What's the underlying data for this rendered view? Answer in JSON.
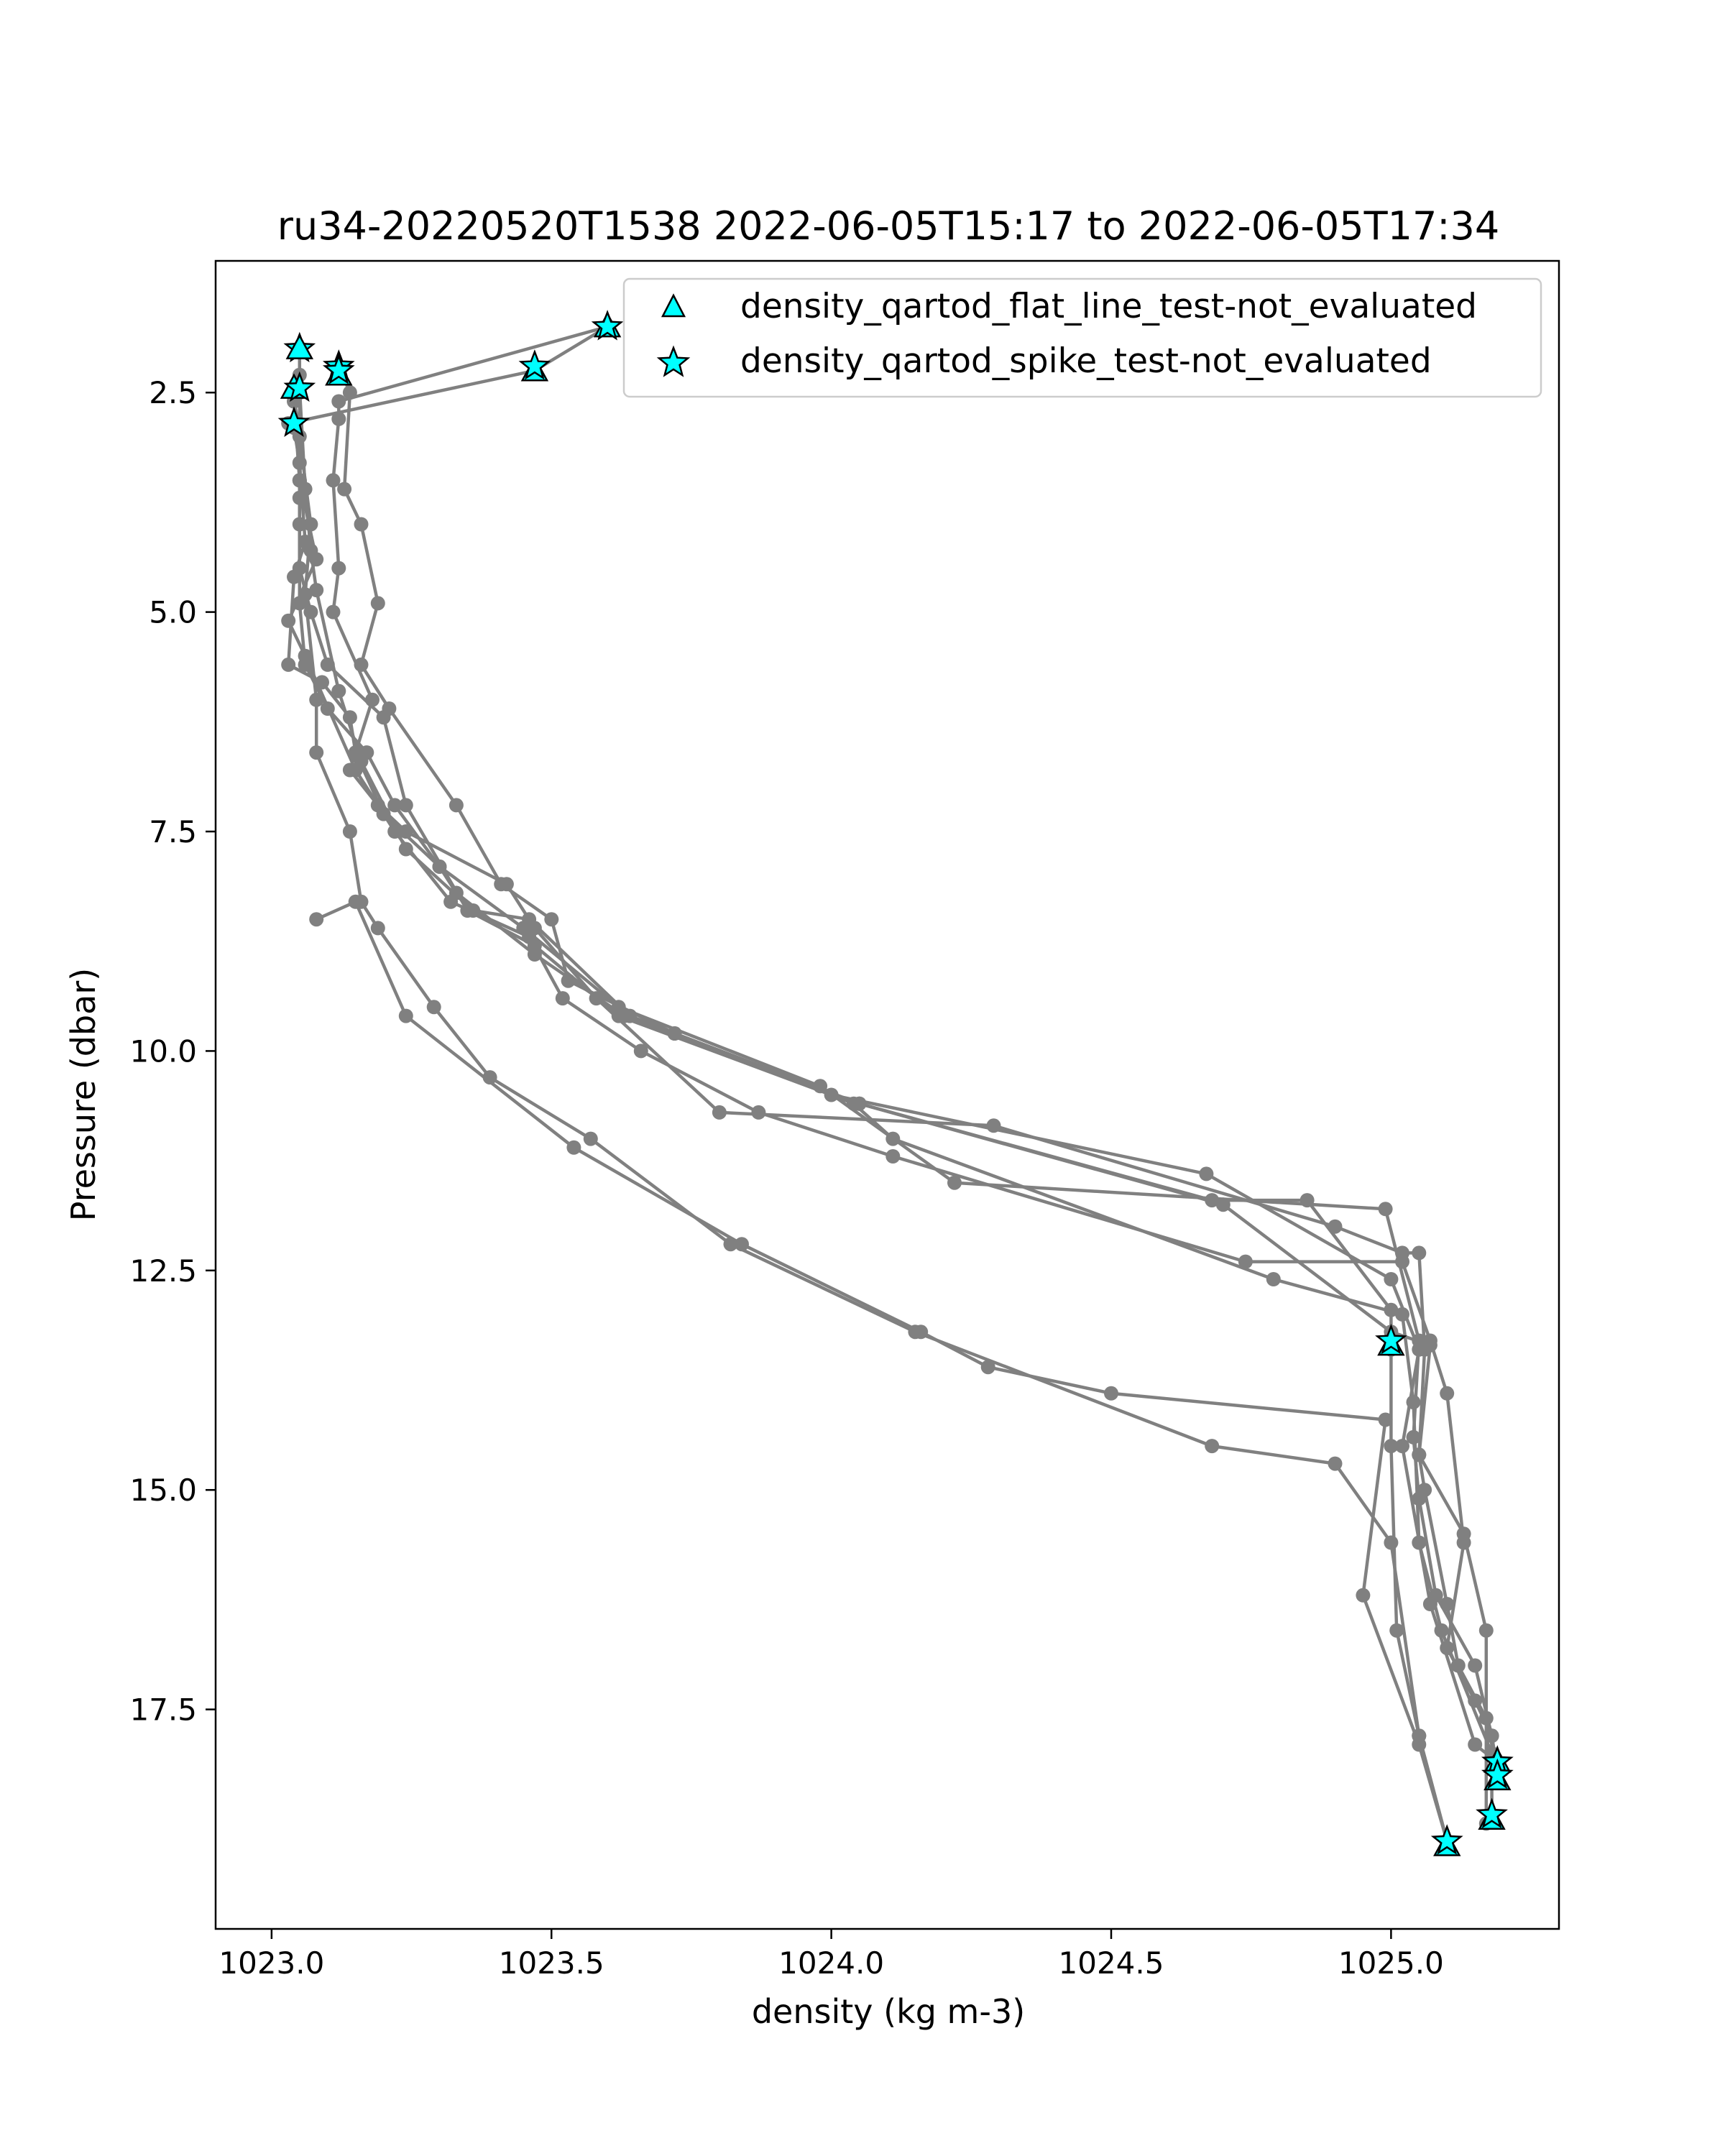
{
  "chart_data": {
    "type": "line",
    "title": "ru34-20220520T1538 2022-06-05T15:17 to 2022-06-05T17:34",
    "xlabel": "density (kg m-3)",
    "ylabel": "Pressure (dbar)",
    "xlim": [
      1022.9,
      1025.3
    ],
    "ylim": [
      20.0,
      1.0
    ],
    "y_inverted": true,
    "grid": false,
    "x_ticks": [
      1023.0,
      1023.5,
      1024.0,
      1024.5,
      1025.0
    ],
    "x_tick_labels": [
      "1023.0",
      "1023.5",
      "1024.0",
      "1024.5",
      "1025.0"
    ],
    "y_ticks": [
      2.5,
      5.0,
      7.5,
      10.0,
      12.5,
      15.0,
      17.5
    ],
    "y_tick_labels": [
      "2.5",
      "5.0",
      "7.5",
      "10.0",
      "12.5",
      "15.0",
      "17.5"
    ],
    "line_color": "#808080",
    "legend": {
      "position": "top-right",
      "entries": [
        {
          "marker": "triangle",
          "label": "density_qartod_flat_line_test-not_evaluated",
          "color": "#00ffff"
        },
        {
          "marker": "star",
          "label": "density_qartod_spike_test-not_evaluated",
          "color": "#00ffff"
        }
      ]
    },
    "series": [
      {
        "points": [
          [
            1023.05,
            2.0
          ],
          [
            1023.05,
            2.3
          ],
          [
            1023.05,
            2.5
          ],
          [
            1023.05,
            3.5
          ],
          [
            1023.05,
            4.0
          ],
          [
            1023.05,
            4.5
          ],
          [
            1023.07,
            5.0
          ],
          [
            1023.1,
            5.6
          ],
          [
            1023.2,
            6.2
          ],
          [
            1023.24,
            7.2
          ],
          [
            1023.35,
            8.4
          ],
          [
            1023.47,
            8.8
          ],
          [
            1023.62,
            9.6
          ],
          [
            1024.0,
            10.5
          ],
          [
            1024.67,
            11.4
          ],
          [
            1025.0,
            12.6
          ],
          [
            1025.05,
            13.4
          ],
          [
            1025.02,
            14.5
          ],
          [
            1025.07,
            16.3
          ],
          [
            1025.15,
            17.9
          ],
          [
            1025.19,
            18.1
          ]
        ]
      },
      {
        "points": [
          [
            1023.12,
            2.2
          ],
          [
            1023.14,
            2.5
          ],
          [
            1023.13,
            3.6
          ],
          [
            1023.16,
            4.0
          ],
          [
            1023.19,
            4.9
          ],
          [
            1023.16,
            5.6
          ],
          [
            1023.21,
            6.1
          ],
          [
            1023.33,
            7.2
          ],
          [
            1023.41,
            8.1
          ],
          [
            1023.5,
            8.5
          ],
          [
            1023.53,
            9.2
          ],
          [
            1023.72,
            9.8
          ],
          [
            1024.05,
            10.6
          ],
          [
            1024.68,
            11.7
          ],
          [
            1024.85,
            11.7
          ],
          [
            1025.0,
            12.95
          ],
          [
            1025.0,
            13.4
          ],
          [
            1025.0,
            14.5
          ],
          [
            1025.01,
            16.6
          ],
          [
            1025.05,
            17.8
          ],
          [
            1025.1,
            19.0
          ]
        ]
      },
      {
        "points": [
          [
            1023.04,
            2.6
          ],
          [
            1023.05,
            3.5
          ],
          [
            1023.08,
            4.4
          ],
          [
            1023.03,
            5.1
          ],
          [
            1023.06,
            5.5
          ],
          [
            1023.15,
            6.8
          ],
          [
            1023.22,
            7.5
          ],
          [
            1023.32,
            8.3
          ],
          [
            1023.46,
            8.7
          ],
          [
            1023.52,
            9.4
          ],
          [
            1023.66,
            10.0
          ],
          [
            1023.87,
            10.7
          ],
          [
            1024.11,
            11.2
          ],
          [
            1024.74,
            12.4
          ],
          [
            1025.02,
            12.4
          ],
          [
            1025.07,
            13.3
          ],
          [
            1025.1,
            13.9
          ],
          [
            1025.13,
            15.6
          ],
          [
            1025.1,
            16.8
          ],
          [
            1025.15,
            17.4
          ],
          [
            1025.18,
            17.8
          ],
          [
            1025.19,
            18.2
          ]
        ]
      },
      {
        "points": [
          [
            1023.05,
            2.45
          ],
          [
            1023.06,
            3.6
          ],
          [
            1023.07,
            4.3
          ],
          [
            1023.08,
            4.75
          ],
          [
            1023.12,
            5.9
          ],
          [
            1023.16,
            6.7
          ],
          [
            1023.24,
            7.7
          ],
          [
            1023.36,
            8.4
          ],
          [
            1023.46,
            8.5
          ],
          [
            1023.64,
            9.6
          ],
          [
            1024.04,
            10.6
          ],
          [
            1024.11,
            11.0
          ],
          [
            1024.79,
            12.6
          ],
          [
            1025.02,
            13.0
          ],
          [
            1025.04,
            14.0
          ],
          [
            1025.05,
            15.6
          ],
          [
            1025.09,
            16.6
          ],
          [
            1025.18,
            18.0
          ],
          [
            1025.19,
            18.3
          ]
        ]
      },
      {
        "points": [
          [
            1023.05,
            2.5
          ],
          [
            1023.05,
            3.7
          ],
          [
            1023.05,
            4.9
          ],
          [
            1023.06,
            5.6
          ],
          [
            1023.1,
            6.1
          ],
          [
            1023.17,
            6.6
          ],
          [
            1023.22,
            7.2
          ],
          [
            1023.3,
            7.9
          ],
          [
            1023.45,
            8.6
          ],
          [
            1023.62,
            9.5
          ],
          [
            1023.98,
            10.4
          ],
          [
            1024.22,
            11.5
          ],
          [
            1024.99,
            11.8
          ],
          [
            1025.05,
            13.3
          ],
          [
            1025.04,
            14.4
          ],
          [
            1025.05,
            15.1
          ],
          [
            1025.08,
            16.2
          ],
          [
            1025.15,
            17.0
          ],
          [
            1025.18,
            17.8
          ],
          [
            1025.18,
            18.7
          ]
        ]
      },
      {
        "points": [
          [
            1023.04,
            2.9
          ],
          [
            1023.05,
            3.3
          ],
          [
            1023.06,
            4.2
          ],
          [
            1023.04,
            4.6
          ],
          [
            1023.03,
            5.6
          ],
          [
            1023.09,
            5.8
          ],
          [
            1023.14,
            6.2
          ],
          [
            1023.15,
            6.6
          ],
          [
            1023.2,
            7.3
          ],
          [
            1023.3,
            7.9
          ],
          [
            1023.33,
            8.2
          ],
          [
            1023.47,
            8.9
          ],
          [
            1023.63,
            9.6
          ],
          [
            1023.72,
            9.8
          ],
          [
            1024.05,
            10.6
          ],
          [
            1024.7,
            11.75
          ],
          [
            1025.0,
            13.2
          ],
          [
            1025.07,
            13.35
          ],
          [
            1025.05,
            14.6
          ],
          [
            1025.13,
            15.5
          ],
          [
            1025.17,
            16.6
          ],
          [
            1025.17,
            18.8
          ]
        ]
      },
      {
        "points": [
          [
            1023.03,
            2.85
          ],
          [
            1023.47,
            2.25
          ],
          [
            1023.6,
            1.75
          ],
          [
            1023.12,
            2.6
          ],
          [
            1023.12,
            2.8
          ],
          [
            1023.11,
            3.5
          ],
          [
            1023.12,
            4.5
          ],
          [
            1023.11,
            5.0
          ],
          [
            1023.18,
            6.0
          ],
          [
            1023.14,
            6.8
          ],
          [
            1023.19,
            7.2
          ],
          [
            1023.24,
            7.5
          ],
          [
            1023.42,
            8.1
          ],
          [
            1023.47,
            8.6
          ],
          [
            1023.58,
            9.4
          ],
          [
            1023.8,
            10.7
          ],
          [
            1024.29,
            10.85
          ],
          [
            1024.9,
            12.0
          ],
          [
            1025.02,
            12.3
          ],
          [
            1025.05,
            12.3
          ],
          [
            1025.06,
            13.4
          ],
          [
            1025.05,
            14.6
          ],
          [
            1025.06,
            15.0
          ],
          [
            1025.1,
            16.3
          ],
          [
            1025.12,
            17.0
          ],
          [
            1025.17,
            17.6
          ],
          [
            1025.19,
            18.2
          ]
        ]
      },
      {
        "points": [
          [
            1023.04,
            2.55
          ],
          [
            1023.05,
            3.0
          ],
          [
            1023.07,
            4.0
          ],
          [
            1023.06,
            4.8
          ],
          [
            1023.08,
            6.0
          ],
          [
            1023.08,
            6.6
          ],
          [
            1023.14,
            7.5
          ],
          [
            1023.16,
            8.3
          ],
          [
            1023.19,
            8.6
          ],
          [
            1023.29,
            9.5
          ],
          [
            1023.39,
            10.3
          ],
          [
            1023.57,
            11.0
          ],
          [
            1023.82,
            12.2
          ],
          [
            1024.15,
            13.2
          ],
          [
            1024.68,
            14.5
          ],
          [
            1024.9,
            14.7
          ],
          [
            1025.0,
            15.6
          ],
          [
            1025.05,
            17.8
          ],
          [
            1025.1,
            19.0
          ]
        ]
      },
      {
        "points": [
          [
            1023.08,
            8.5
          ],
          [
            1023.15,
            8.3
          ],
          [
            1023.24,
            9.6
          ],
          [
            1023.54,
            11.1
          ],
          [
            1023.84,
            12.2
          ],
          [
            1024.16,
            13.2
          ],
          [
            1024.28,
            13.6
          ],
          [
            1024.5,
            13.9
          ],
          [
            1024.99,
            14.2
          ],
          [
            1024.95,
            16.2
          ],
          [
            1025.05,
            17.9
          ],
          [
            1025.1,
            19.0
          ]
        ]
      }
    ],
    "markers": [
      {
        "type": "star",
        "x": 1023.05,
        "y": 2.0
      },
      {
        "type": "triangle",
        "x": 1023.05,
        "y": 2.0
      },
      {
        "type": "star",
        "x": 1023.12,
        "y": 2.2
      },
      {
        "type": "triangle",
        "x": 1023.12,
        "y": 2.3
      },
      {
        "type": "star",
        "x": 1023.12,
        "y": 2.25
      },
      {
        "type": "triangle",
        "x": 1023.04,
        "y": 2.45
      },
      {
        "type": "star",
        "x": 1023.05,
        "y": 2.45
      },
      {
        "type": "star",
        "x": 1023.04,
        "y": 2.85
      },
      {
        "type": "triangle",
        "x": 1023.47,
        "y": 2.25
      },
      {
        "type": "star",
        "x": 1023.47,
        "y": 2.2
      },
      {
        "type": "triangle",
        "x": 1023.6,
        "y": 1.75
      },
      {
        "type": "star",
        "x": 1023.6,
        "y": 1.75
      },
      {
        "type": "triangle",
        "x": 1025.0,
        "y": 13.35
      },
      {
        "type": "star",
        "x": 1025.0,
        "y": 13.3
      },
      {
        "type": "triangle",
        "x": 1025.19,
        "y": 18.1
      },
      {
        "type": "star",
        "x": 1025.19,
        "y": 18.1
      },
      {
        "type": "triangle",
        "x": 1025.19,
        "y": 18.3
      },
      {
        "type": "star",
        "x": 1025.19,
        "y": 18.25
      },
      {
        "type": "triangle",
        "x": 1025.18,
        "y": 18.75
      },
      {
        "type": "star",
        "x": 1025.18,
        "y": 18.7
      },
      {
        "type": "triangle",
        "x": 1025.1,
        "y": 19.05
      },
      {
        "type": "star",
        "x": 1025.1,
        "y": 19.0
      }
    ]
  }
}
